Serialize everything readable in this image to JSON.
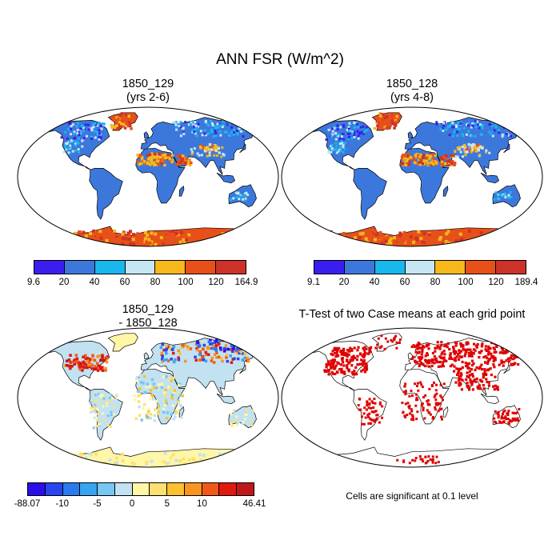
{
  "main_title": "ANN FSR (W/m^2)",
  "panels": [
    {
      "title_line1": "1850_129",
      "title_line2": "(yrs 2-6)",
      "colorbar_colors": [
        "#3a1ef0",
        "#3c78dc",
        "#18b8ee",
        "#c6e6f2",
        "#f6b81a",
        "#e8501a",
        "#cc3228"
      ],
      "colorbar_labels": [
        "9.6",
        "20",
        "40",
        "60",
        "80",
        "100",
        "120",
        "164.9"
      ]
    },
    {
      "title_line1": "1850_128",
      "title_line2": "(yrs 4-8)",
      "colorbar_colors": [
        "#3a1ef0",
        "#3c78dc",
        "#18b8ee",
        "#c6e6f2",
        "#f6b81a",
        "#e8501a",
        "#cc3228"
      ],
      "colorbar_labels": [
        "9.1",
        "20",
        "40",
        "60",
        "80",
        "100",
        "120",
        "189.4"
      ]
    },
    {
      "title_line1": "1850_129",
      "title_line2": "- 1850_128",
      "colorbar_colors": [
        "#2a10e8",
        "#2a44ee",
        "#2a7aee",
        "#38a4f2",
        "#78c6f2",
        "#c2e2f2",
        "#fff6a8",
        "#fee070",
        "#fcc030",
        "#f89420",
        "#f05a18",
        "#e01810",
        "#c01818"
      ],
      "colorbar_labels": [
        "-88.07",
        "-10",
        "-5",
        "0",
        "5",
        "10",
        "46.41"
      ]
    },
    {
      "title_line1": "T-Test of two Case means at each grid point",
      "note": "Cells are significant at 0.1 level",
      "significance_color": "#e00000"
    }
  ]
}
